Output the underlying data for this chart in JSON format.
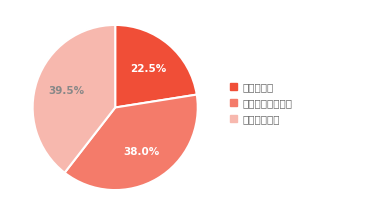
{
  "labels": [
    "知っている",
    "聞いたことはある",
    "知らなかった"
  ],
  "values": [
    22.5,
    38.0,
    39.5
  ],
  "colors": [
    "#f04e37",
    "#f47b6a",
    "#f7b8ae"
  ],
  "label_colors": [
    "white",
    "white",
    "#888888"
  ],
  "pct_labels": [
    "22.5%",
    "38.0%",
    "39.5%"
  ],
  "legend_colors": [
    "#f04e37",
    "#f47b6a",
    "#f7b8ae"
  ],
  "background_color": "#ffffff",
  "startangle": 90
}
